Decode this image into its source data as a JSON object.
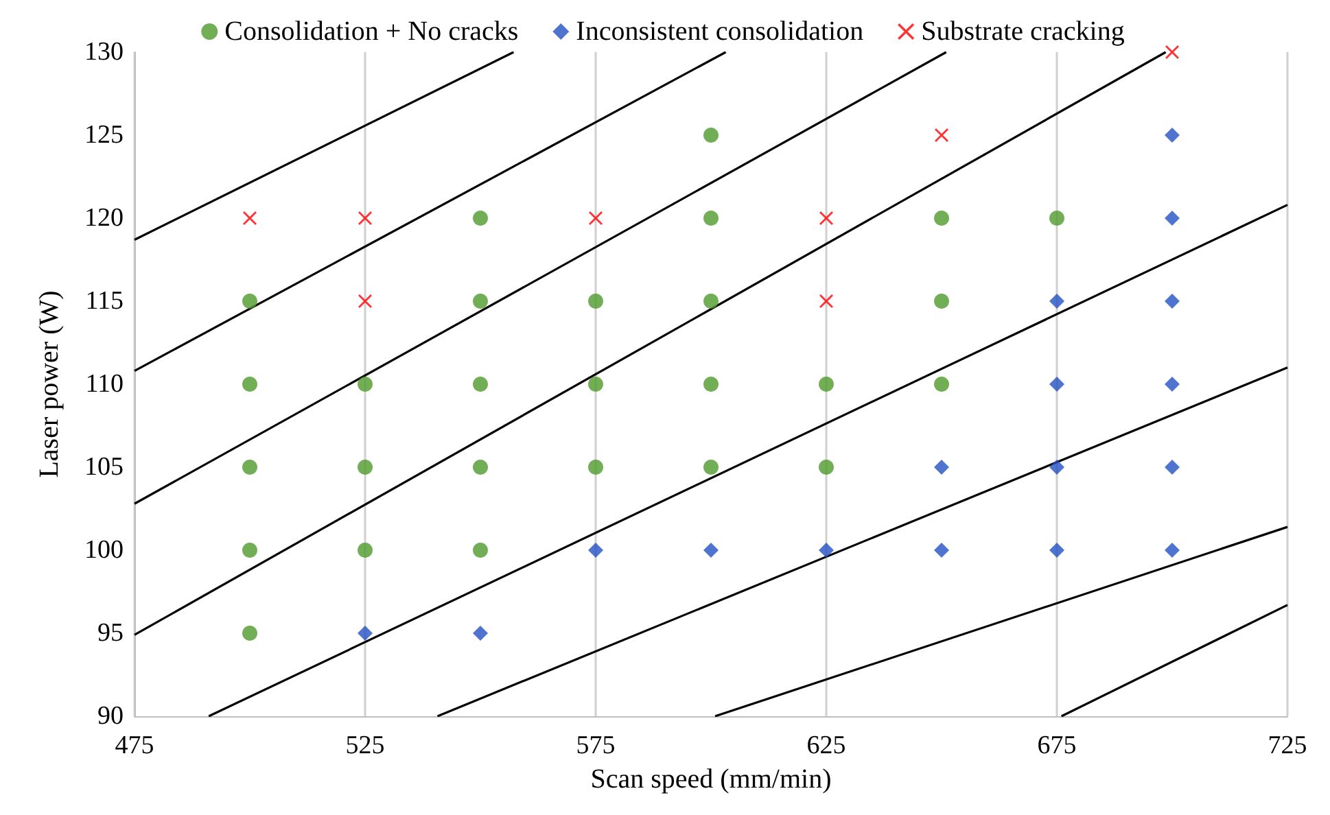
{
  "chart_data": {
    "type": "scatter",
    "xlabel": "Scan speed (mm/min)",
    "ylabel": "Laser power (W)",
    "xlim": [
      475,
      725
    ],
    "xticks": [
      475,
      525,
      575,
      625,
      675,
      725
    ],
    "ylim": [
      90,
      130
    ],
    "yticks": [
      90,
      95,
      100,
      105,
      110,
      115,
      120,
      125,
      130
    ],
    "grid": "x",
    "legend": "top",
    "series": [
      {
        "name": "Consolidation + No cracks",
        "color": "#4e9a2b",
        "marker": "circle",
        "x": [
          500,
          500,
          500,
          500,
          500,
          525,
          525,
          525,
          550,
          550,
          550,
          550,
          550,
          575,
          575,
          575,
          600,
          600,
          600,
          600,
          600,
          625,
          625,
          650,
          650,
          650,
          675
        ],
        "values": [
          95,
          100,
          105,
          110,
          115,
          100,
          105,
          110,
          100,
          105,
          110,
          115,
          120,
          105,
          110,
          115,
          105,
          110,
          115,
          120,
          125,
          105,
          110,
          110,
          115,
          120,
          120
        ]
      },
      {
        "name": "Inconsistent consolidation",
        "color": "#2251c4",
        "marker": "diamond",
        "x": [
          525,
          550,
          575,
          600,
          625,
          650,
          650,
          675,
          675,
          675,
          675,
          700,
          700,
          700,
          700,
          700,
          700
        ],
        "values": [
          95,
          95,
          100,
          100,
          100,
          100,
          105,
          100,
          105,
          110,
          115,
          100,
          105,
          110,
          115,
          120,
          125
        ]
      },
      {
        "name": "Substrate cracking",
        "color": "#ff0000",
        "marker": "cross",
        "x": [
          500,
          525,
          525,
          575,
          625,
          625,
          650,
          700
        ],
        "values": [
          120,
          115,
          120,
          120,
          115,
          120,
          125,
          130
        ]
      },
      {
        "type": "line",
        "color": "#000000",
        "x": [
          475,
          557.2
        ],
        "values": [
          118.7,
          130
        ]
      },
      {
        "type": "line",
        "color": "#000000",
        "x": [
          475,
          603.2
        ],
        "values": [
          110.8,
          130
        ]
      },
      {
        "type": "line",
        "color": "#000000",
        "x": [
          475,
          651
        ],
        "values": [
          102.8,
          130
        ]
      },
      {
        "type": "line",
        "color": "#000000",
        "x": [
          475,
          698.6
        ],
        "values": [
          94.9,
          130
        ]
      },
      {
        "type": "line",
        "color": "#000000",
        "x": [
          491.1,
          725
        ],
        "values": [
          90,
          120.8
        ]
      },
      {
        "type": "line",
        "color": "#000000",
        "x": [
          540.7,
          725
        ],
        "values": [
          90,
          111
        ]
      },
      {
        "type": "line",
        "color": "#000000",
        "x": [
          600.9,
          725
        ],
        "values": [
          90,
          101.4
        ]
      },
      {
        "type": "line",
        "color": "#000000",
        "x": [
          676,
          725
        ],
        "values": [
          90,
          96.7
        ]
      }
    ]
  }
}
